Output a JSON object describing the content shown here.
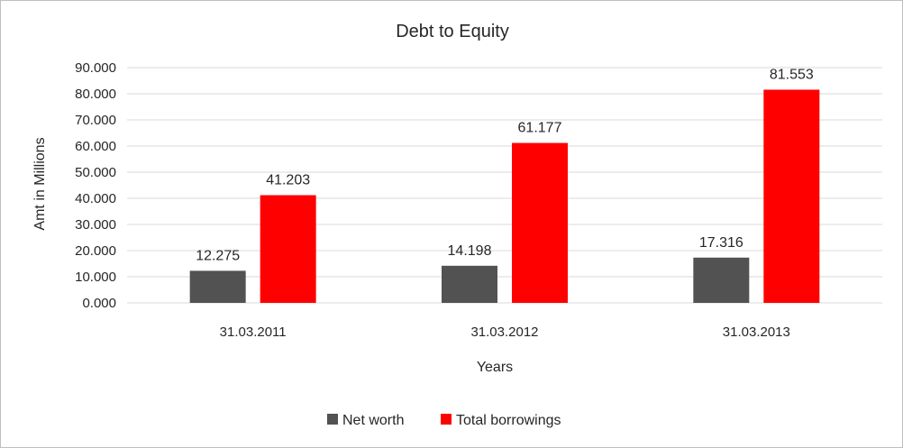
{
  "chart_data": {
    "type": "bar",
    "title": "Debt to Equity",
    "xlabel": "Years",
    "ylabel": "Amt in Millions",
    "categories": [
      "31.03.2011",
      "31.03.2012",
      "31.03.2013"
    ],
    "series": [
      {
        "name": "Net worth",
        "values": [
          12.275,
          14.198,
          17.316
        ],
        "color": "#525252"
      },
      {
        "name": "Total borrowings",
        "values": [
          41.203,
          61.177,
          81.553
        ],
        "color": "#ff0000"
      }
    ],
    "ylim": [
      0,
      90
    ],
    "yticks": [
      "0.000",
      "10.000",
      "20.000",
      "30.000",
      "40.000",
      "50.000",
      "60.000",
      "70.000",
      "80.000",
      "90.000"
    ],
    "data_labels": [
      [
        "12.275",
        "14.198",
        "17.316"
      ],
      [
        "41.203",
        "61.177",
        "81.553"
      ]
    ],
    "grid": true,
    "legend_position": "bottom"
  }
}
